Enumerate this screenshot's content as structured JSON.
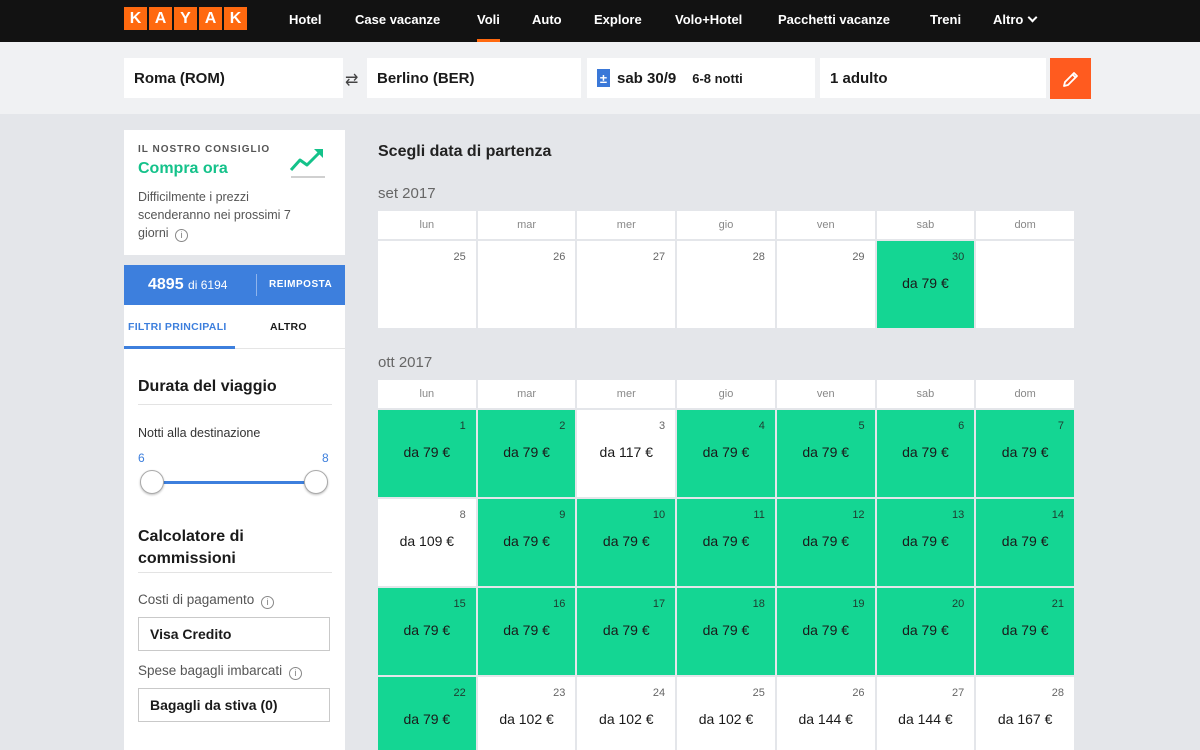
{
  "nav": {
    "logo_letters": [
      "K",
      "A",
      "Y",
      "A",
      "K"
    ],
    "items": [
      "Hotel",
      "Case vacanze",
      "Voli",
      "Auto",
      "Explore",
      "Volo+Hotel",
      "Pacchetti vacanze",
      "Treni",
      "Altro"
    ],
    "active": "Voli"
  },
  "search": {
    "origin": "Roma (ROM)",
    "destination": "Berlino (BER)",
    "date_icon": "±",
    "date": "sab 30/9",
    "nights": "6-8 notti",
    "travelers": "1 adulto"
  },
  "advice": {
    "heading": "IL NOSTRO CONSIGLIO",
    "title": "Compra ora",
    "body": "Difficilmente i prezzi scenderanno nei prossimi 7 giorni",
    "info_glyph": "i"
  },
  "results": {
    "count": "4895",
    "of_total": "di 6194",
    "reset_label": "REIMPOSTA"
  },
  "filters": {
    "tabs": [
      "FILTRI PRINCIPALI",
      "ALTRO"
    ],
    "trip_duration_title": "Durata del viaggio",
    "nights_label": "Notti alla destinazione",
    "nights_min": "6",
    "nights_max": "8",
    "fee_title": "Calcolatore di commissioni",
    "payment_label": "Costi di pagamento",
    "payment_value": "Visa Credito",
    "bags_label": "Spese bagagli imbarcati",
    "bags_value": "Bagagli da stiva (0)"
  },
  "calendar": {
    "title": "Scegli data di partenza",
    "weekdays": [
      "lun",
      "mar",
      "mer",
      "gio",
      "ven",
      "sab",
      "dom"
    ],
    "colors": {
      "cheap": "#14d693",
      "normal": "#ffffff"
    },
    "months": [
      {
        "label": "set 2017",
        "days": [
          {
            "day": "25",
            "price": "",
            "cheap": false
          },
          {
            "day": "26",
            "price": "",
            "cheap": false
          },
          {
            "day": "27",
            "price": "",
            "cheap": false
          },
          {
            "day": "28",
            "price": "",
            "cheap": false
          },
          {
            "day": "29",
            "price": "",
            "cheap": false
          },
          {
            "day": "30",
            "price": "da 79 €",
            "cheap": true
          },
          {
            "day": "",
            "price": "",
            "cheap": false
          }
        ]
      },
      {
        "label": "ott 2017",
        "days": [
          {
            "day": "1",
            "price": "da 79 €",
            "cheap": true
          },
          {
            "day": "2",
            "price": "da 79 €",
            "cheap": true
          },
          {
            "day": "3",
            "price": "da 117 €",
            "cheap": false
          },
          {
            "day": "4",
            "price": "da 79 €",
            "cheap": true
          },
          {
            "day": "5",
            "price": "da 79 €",
            "cheap": true
          },
          {
            "day": "6",
            "price": "da 79 €",
            "cheap": true
          },
          {
            "day": "7",
            "price": "da 79 €",
            "cheap": true
          },
          {
            "day": "8",
            "price": "da 109 €",
            "cheap": false
          },
          {
            "day": "9",
            "price": "da 79 €",
            "cheap": true
          },
          {
            "day": "10",
            "price": "da 79 €",
            "cheap": true
          },
          {
            "day": "11",
            "price": "da 79 €",
            "cheap": true
          },
          {
            "day": "12",
            "price": "da 79 €",
            "cheap": true
          },
          {
            "day": "13",
            "price": "da 79 €",
            "cheap": true
          },
          {
            "day": "14",
            "price": "da 79 €",
            "cheap": true
          },
          {
            "day": "15",
            "price": "da 79 €",
            "cheap": true
          },
          {
            "day": "16",
            "price": "da 79 €",
            "cheap": true
          },
          {
            "day": "17",
            "price": "da 79 €",
            "cheap": true
          },
          {
            "day": "18",
            "price": "da 79 €",
            "cheap": true
          },
          {
            "day": "19",
            "price": "da 79 €",
            "cheap": true
          },
          {
            "day": "20",
            "price": "da 79 €",
            "cheap": true
          },
          {
            "day": "21",
            "price": "da 79 €",
            "cheap": true
          },
          {
            "day": "22",
            "price": "da 79 €",
            "cheap": true
          },
          {
            "day": "23",
            "price": "da 102 €",
            "cheap": false
          },
          {
            "day": "24",
            "price": "da 102 €",
            "cheap": false
          },
          {
            "day": "25",
            "price": "da 102 €",
            "cheap": false
          },
          {
            "day": "26",
            "price": "da 144 €",
            "cheap": false
          },
          {
            "day": "27",
            "price": "da 144 €",
            "cheap": false
          },
          {
            "day": "28",
            "price": "da 167 €",
            "cheap": false
          }
        ]
      }
    ]
  }
}
